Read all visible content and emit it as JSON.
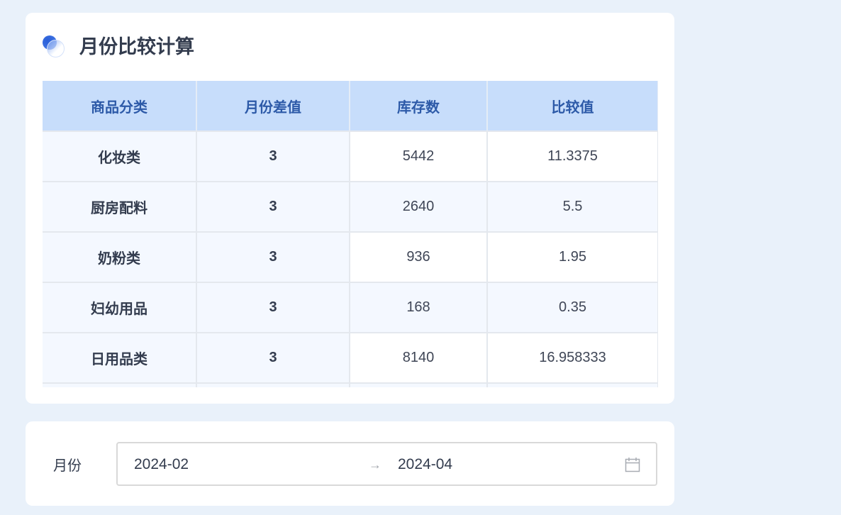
{
  "card": {
    "title": "月份比较计算"
  },
  "table": {
    "headers": [
      "商品分类",
      "月份差值",
      "库存数",
      "比较值"
    ],
    "rows": [
      [
        "化妆类",
        "3",
        "5442",
        "11.3375"
      ],
      [
        "厨房配料",
        "3",
        "2640",
        "5.5"
      ],
      [
        "奶粉类",
        "3",
        "936",
        "1.95"
      ],
      [
        "妇幼用品",
        "3",
        "168",
        "0.35"
      ],
      [
        "日用品类",
        "3",
        "8140",
        "16.958333"
      ]
    ]
  },
  "filter": {
    "label": "月份",
    "start": "2024-02",
    "separator": "→",
    "end": "2024-04",
    "icon": "calendar-icon"
  },
  "colors": {
    "header_bg": "#c7ddfb",
    "header_text": "#2d5aa8",
    "page_bg": "#e9f1fa"
  }
}
